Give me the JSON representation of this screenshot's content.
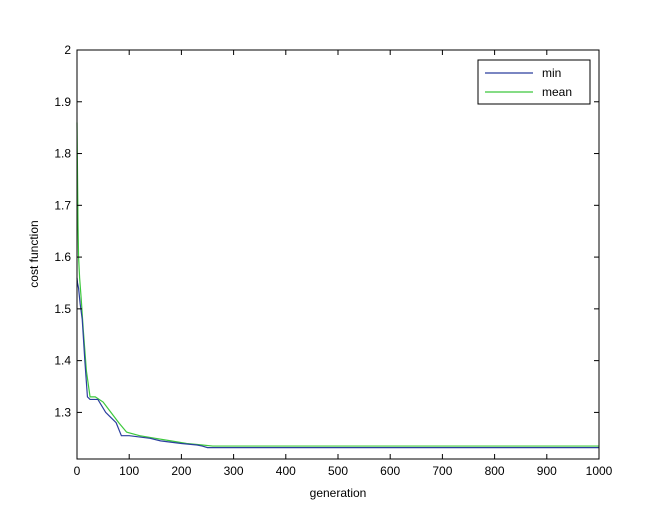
{
  "chart_data": {
    "type": "line",
    "title": "",
    "xlabel": "generation",
    "ylabel": "cost function",
    "xlim": [
      0,
      1000
    ],
    "ylim": [
      1.21,
      2.0
    ],
    "xticks": [
      0,
      100,
      200,
      300,
      400,
      500,
      600,
      700,
      800,
      900,
      1000
    ],
    "yticks": [
      1.3,
      1.4,
      1.5,
      1.6,
      1.7,
      1.8,
      1.9,
      2.0
    ],
    "ytick_labels": [
      "1.3",
      "1.4",
      "1.5",
      "1.6",
      "1.7",
      "1.8",
      "1.9",
      "2"
    ],
    "grid": false,
    "legend_position": "top-right",
    "series": [
      {
        "name": "min",
        "color": "#2b3f9e",
        "x": [
          0,
          1,
          3,
          6,
          10,
          15,
          20,
          25,
          40,
          55,
          65,
          75,
          85,
          100,
          140,
          160,
          200,
          230,
          240,
          250,
          1000
        ],
        "y": [
          1.56,
          1.55,
          1.54,
          1.51,
          1.48,
          1.4,
          1.33,
          1.325,
          1.325,
          1.3,
          1.29,
          1.28,
          1.255,
          1.255,
          1.25,
          1.245,
          1.24,
          1.237,
          1.235,
          1.232,
          1.232
        ]
      },
      {
        "name": "mean",
        "color": "#3cc83c",
        "x": [
          0,
          1,
          2,
          3,
          5,
          8,
          12,
          18,
          25,
          35,
          50,
          65,
          80,
          95,
          120,
          150,
          180,
          210,
          240,
          260,
          1000
        ],
        "y": [
          1.86,
          1.76,
          1.66,
          1.6,
          1.56,
          1.52,
          1.46,
          1.38,
          1.33,
          1.33,
          1.32,
          1.3,
          1.28,
          1.262,
          1.255,
          1.25,
          1.245,
          1.24,
          1.237,
          1.235,
          1.235
        ]
      }
    ]
  }
}
